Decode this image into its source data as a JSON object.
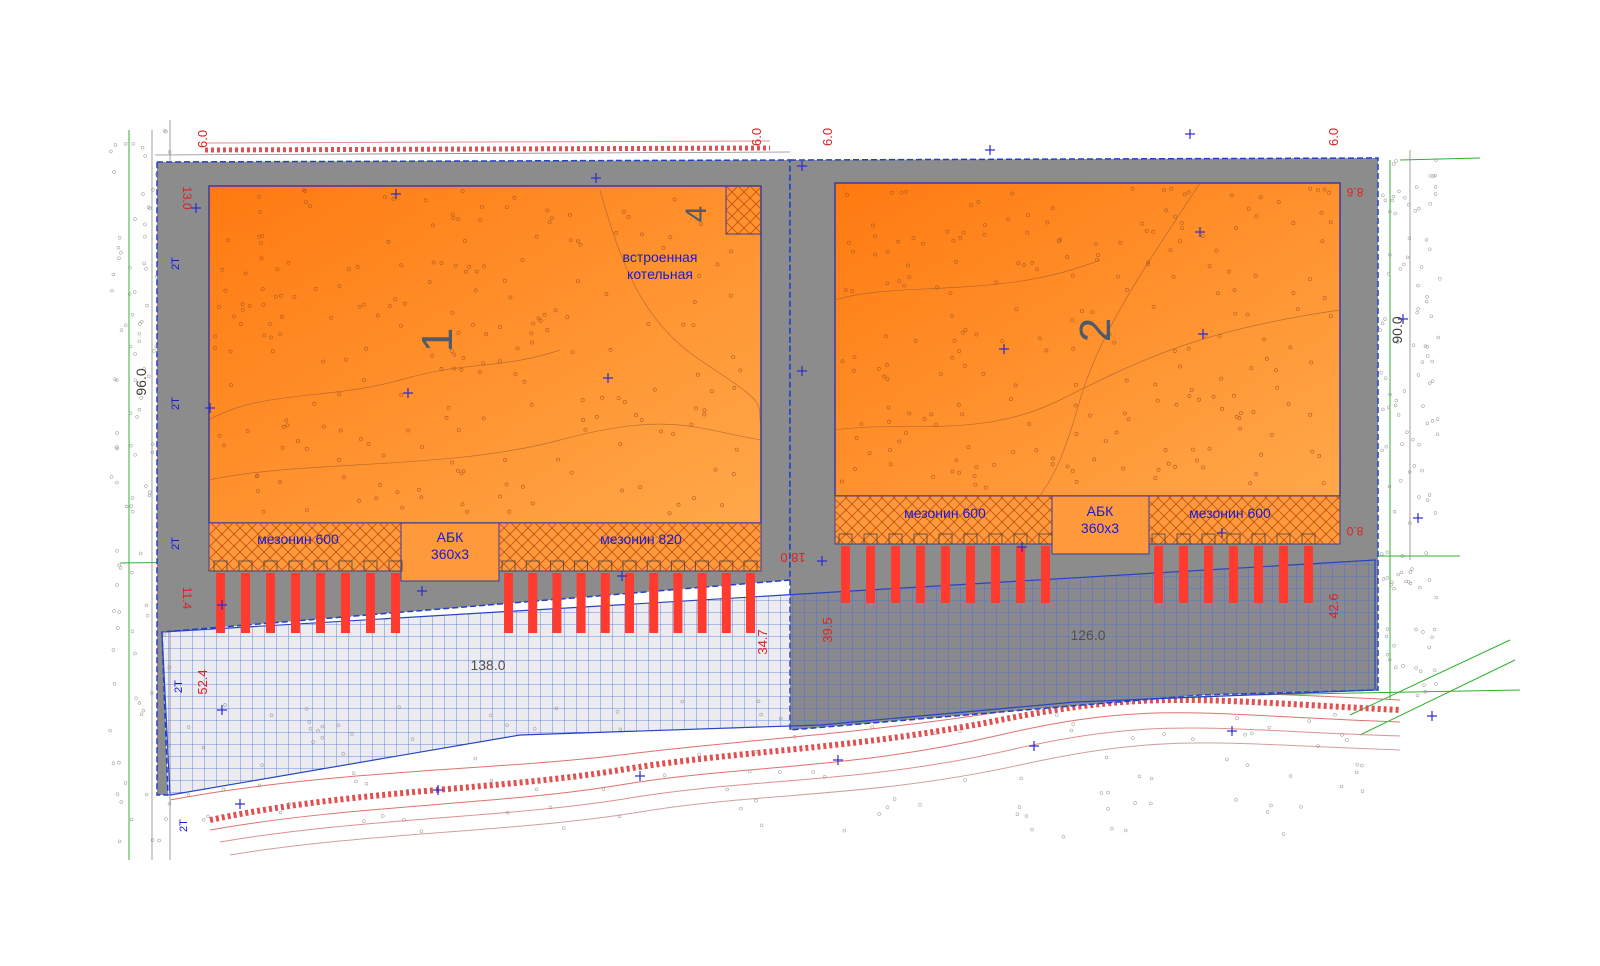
{
  "colors": {
    "background": "#ffffff",
    "plot_fill": "#8c8c8c",
    "building_fill": "#ff8a1e",
    "building_fill_light": "#ffa040",
    "building_outline": "#3a3aa0",
    "mezzanine_fill": "#ff9a3c",
    "hatch": "#c05010",
    "dock": "#ff3b30",
    "parking_grid": "#3a6ee8",
    "boundary": "#2040c8",
    "green_lines": "#30b030",
    "contours": "#d07070",
    "dimension_red": "#e02020",
    "label_blue": "#1a1ad0"
  },
  "buildings": [
    {
      "number": "1",
      "boiler_number": "4",
      "boiler_label_line1": "встроенная",
      "boiler_label_line2": "котельная",
      "mezzanines": [
        "мезонин 600",
        "мезонин 820"
      ],
      "abk_line1": "АБК",
      "abk_line2": "360х3",
      "dock_count": 20
    },
    {
      "number": "2",
      "mezzanines": [
        "мезонин 600",
        "мезонин 600"
      ],
      "abk_line1": "АБК",
      "abk_line2": "360х3",
      "dock_count": 17
    }
  ],
  "dimensions": {
    "top_offsets": [
      "6.0",
      "6.0",
      "6.0",
      "6.0"
    ],
    "left_width": "96.0",
    "right_width": "90.0",
    "yard_left": "138.0",
    "yard_right": "126.0",
    "depth_left": "52.4",
    "depth_middle_left": "34.7",
    "depth_middle_right": "39.5",
    "depth_right": "42.6",
    "gap_middle": "18.0",
    "corner_offsets": [
      "8.6",
      "8.0",
      "11.4",
      "13.0"
    ]
  },
  "road_labels": [
    "2T",
    "2T",
    "2T",
    "2T",
    "2T"
  ]
}
